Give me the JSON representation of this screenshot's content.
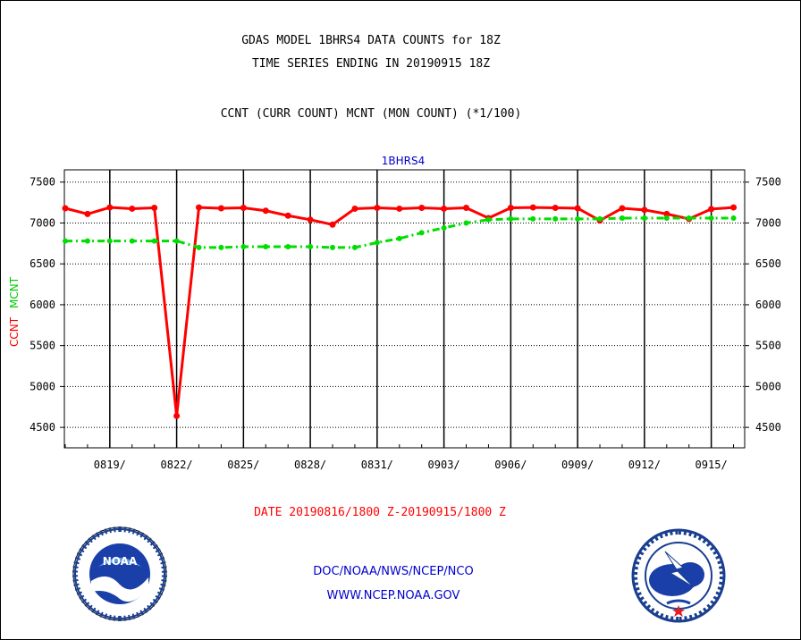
{
  "header": {
    "title_line1": "GDAS MODEL 1BHRS4 DATA COUNTS for 18Z",
    "title_line2": "TIME SERIES ENDING IN 20190915 18Z",
    "subtitle": "CCNT (CURR COUNT) MCNT (MON COUNT) (*1/100)"
  },
  "footer": {
    "date_range": "DATE 20190816/1800 Z-20190915/1800 Z",
    "agency": "DOC/NOAA/NWS/NCEP/NCO",
    "website": "WWW.NCEP.NOAA.GOV"
  },
  "logos": {
    "noaa_text": "NOAA",
    "nws_text": "NATIONAL WEATHER SERVICE"
  },
  "chart_data": {
    "type": "line",
    "title": "1BHRS4",
    "ylabel_left": [
      "CCNT",
      "MCNT"
    ],
    "ylim": [
      4250,
      7650
    ],
    "yticks": [
      4500,
      5000,
      5500,
      6000,
      6500,
      7000,
      7500
    ],
    "xlim": [
      0,
      30.5
    ],
    "xtick_positions": [
      2,
      5,
      8,
      11,
      14,
      17,
      20,
      23,
      26,
      29
    ],
    "xtick_labels": [
      "0819/",
      "0822/",
      "0825/",
      "0828/",
      "0831/",
      "0903/",
      "0906/",
      "0909/",
      "0912/",
      "0915/"
    ],
    "grid": true,
    "colors": {
      "ccnt": "#ff0000",
      "mcnt": "#00dd00",
      "title": "#0000cc"
    },
    "series": [
      {
        "name": "CCNT",
        "style": "solid",
        "x": [
          0,
          1,
          2,
          3,
          4,
          5,
          6,
          7,
          8,
          9,
          10,
          11,
          12,
          13,
          14,
          15,
          16,
          17,
          18,
          19,
          20,
          21,
          22,
          23,
          24,
          25,
          26,
          27,
          28,
          29,
          30
        ],
        "values": [
          7180,
          7110,
          7190,
          7175,
          7185,
          4640,
          7190,
          7180,
          7185,
          7150,
          7090,
          7040,
          6980,
          7175,
          7185,
          7175,
          7185,
          7175,
          7185,
          7060,
          7185,
          7190,
          7185,
          7180,
          7030,
          7180,
          7160,
          7110,
          7050,
          7170,
          7190
        ]
      },
      {
        "name": "MCNT",
        "style": "dash-dot",
        "x": [
          0,
          1,
          2,
          3,
          4,
          5,
          6,
          7,
          8,
          9,
          10,
          11,
          12,
          13,
          14,
          15,
          16,
          17,
          18,
          19,
          20,
          21,
          22,
          23,
          24,
          25,
          26,
          27,
          28,
          29,
          30
        ],
        "values": [
          6780,
          6780,
          6780,
          6780,
          6780,
          6780,
          6700,
          6700,
          6710,
          6710,
          6710,
          6710,
          6700,
          6700,
          6760,
          6810,
          6880,
          6940,
          7000,
          7040,
          7050,
          7050,
          7050,
          7050,
          7050,
          7060,
          7060,
          7060,
          7060,
          7060,
          7060
        ]
      }
    ]
  }
}
